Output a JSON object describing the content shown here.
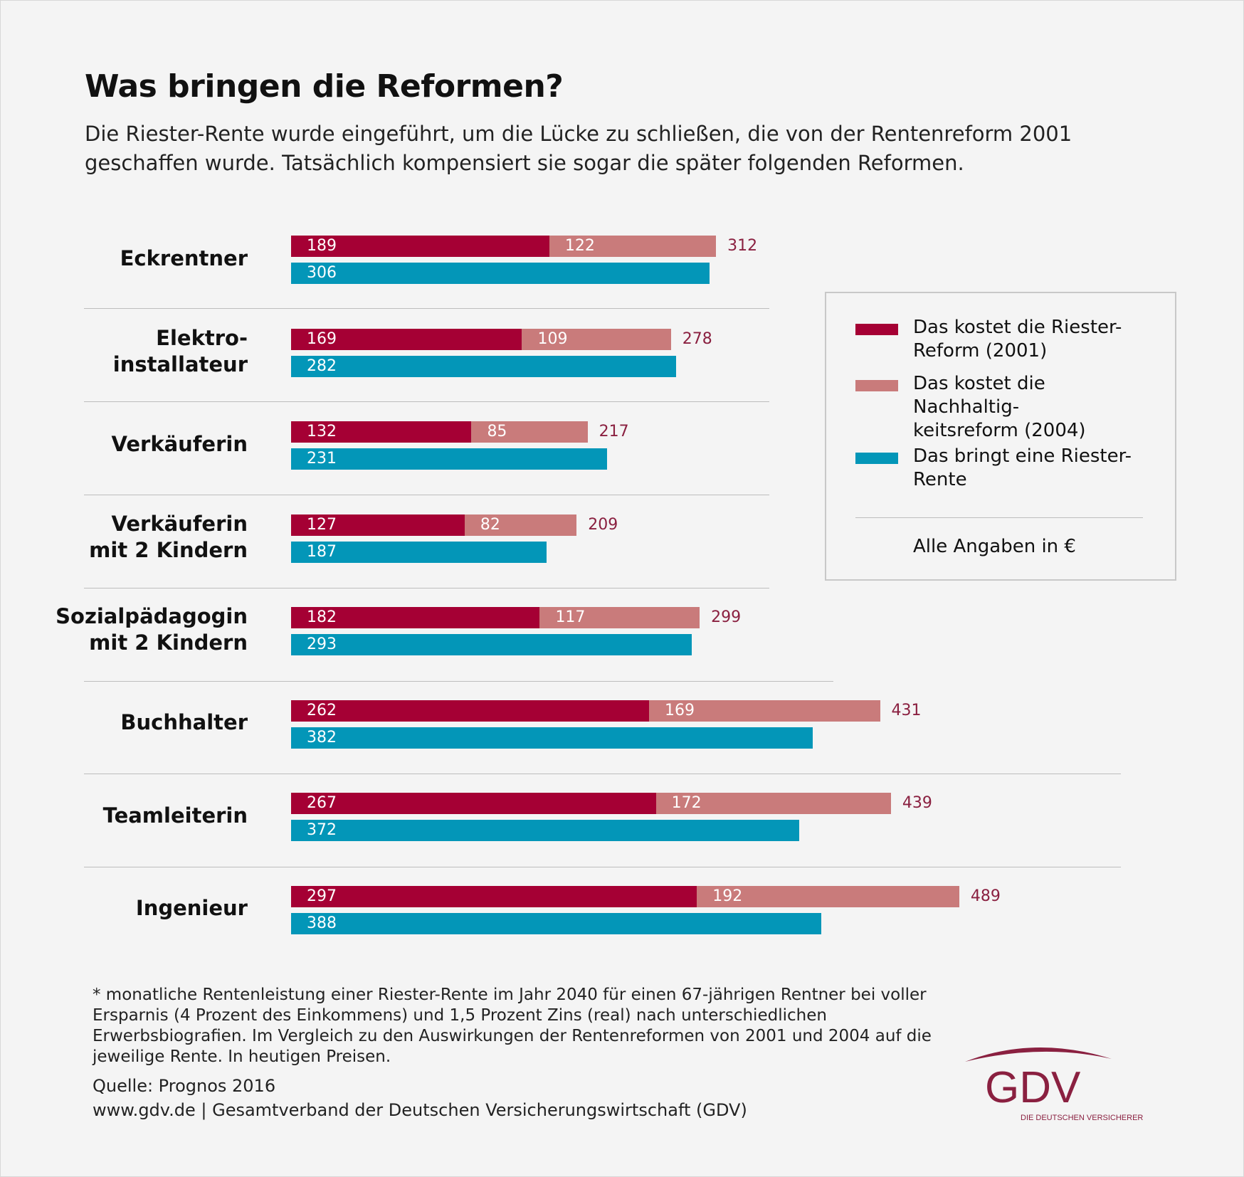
{
  "title": "Was bringen die Reformen?",
  "subtitle": "Die Riester-Rente wurde eingeführt, um die Lücke zu schließen, die von der Rentenreform 2001 geschaffen wurde. Tatsächlich kompensiert sie sogar die später folgenden Reformen.",
  "chart_data": {
    "type": "bar",
    "orientation": "horizontal",
    "categories": [
      "Eckrentner",
      "Elektro-\ninstallateur",
      "Verkäuferin",
      "Verkäuferin\nmit 2 Kindern",
      "Sozialpädagogin\nmit 2 Kindern",
      "Buchhalter",
      "Teamleiterin",
      "Ingenieur"
    ],
    "series": [
      {
        "name": "Das kostet die Riester-Reform (2001)",
        "color": "#a50034",
        "stack": "kosten",
        "values": [
          189,
          169,
          132,
          127,
          182,
          262,
          267,
          297
        ]
      },
      {
        "name": "Das kostet die Nachhaltigkeitsreform (2004)",
        "color": "#c97b7b",
        "stack": "kosten",
        "values": [
          122,
          109,
          85,
          82,
          117,
          169,
          172,
          192
        ]
      },
      {
        "name": "Das bringt eine Riester-Rente",
        "color": "#0396b8",
        "stack": "rente",
        "values": [
          306,
          282,
          231,
          187,
          293,
          382,
          372,
          388
        ]
      }
    ],
    "totals": [
      312,
      278,
      217,
      209,
      299,
      431,
      439,
      489
    ],
    "total_color": "#8a2040",
    "unit": "€",
    "grid": false,
    "legend": "right"
  },
  "legend": {
    "items": [
      "Das kostet die Riester-\nReform (2001)",
      "Das kostet die Nachhaltig-\nkeitsreform (2004)",
      "Das bringt eine Riester-\nRente"
    ],
    "note": "Alle Angaben in €"
  },
  "footnote": "* monatliche Rentenleistung einer Riester-Rente im Jahr 2040 für einen 67-jährigen Rentner bei voller Ersparnis (4 Prozent des Einkommens) und 1,5 Prozent Zins (real) nach unterschiedlichen Erwerbsbiografien. Im Vergleich zu den Auswirkungen der Rentenreformen von 2001 und 2004 auf die jeweilige Rente. In heutigen Preisen.",
  "source": "Quelle: Prognos 2016",
  "publisher": "www.gdv.de | Gesamtverband der Deutschen Versicherungswirtschaft (GDV)",
  "logo": {
    "text": "GDV",
    "tagline": "DIE DEUTSCHEN VERSICHERER",
    "color": "#8a2040"
  }
}
